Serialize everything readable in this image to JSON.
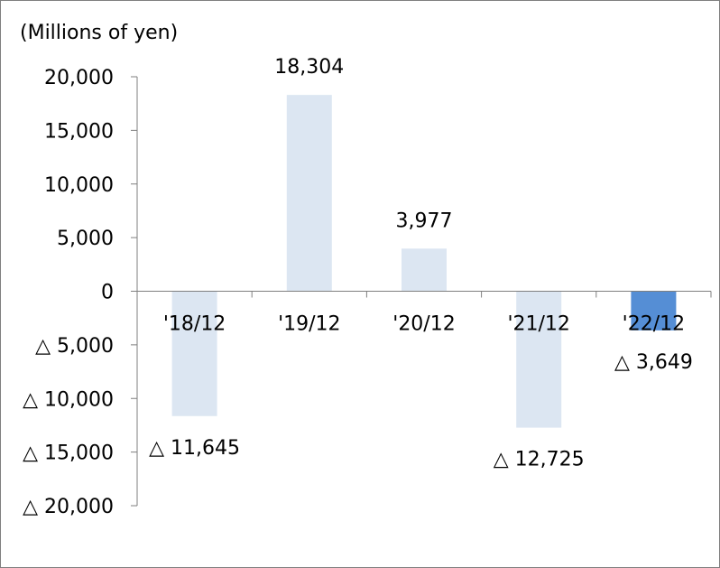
{
  "chart_data": {
    "type": "bar",
    "unit_label": "(Millions of yen)",
    "categories": [
      "'18/12",
      "'19/12",
      "'20/12",
      "'21/12",
      "'22/12"
    ],
    "values": [
      -11645,
      18304,
      3977,
      -12725,
      -3649
    ],
    "data_labels": [
      "△ 11,645",
      "18,304",
      "3,977",
      "△ 12,725",
      "△ 3,649"
    ],
    "ylim": [
      -20000,
      20000
    ],
    "yticks": [
      20000,
      15000,
      10000,
      5000,
      0,
      -5000,
      -10000,
      -15000,
      -20000
    ],
    "ytick_labels": [
      "20,000",
      "15,000",
      "10,000",
      "5,000",
      "0",
      "△ 5,000",
      "△ 10,000",
      "△ 15,000",
      "△ 20,000"
    ],
    "highlight_index": 4,
    "colors": {
      "bar": "#dce6f2",
      "highlight": "#558ed5",
      "axis": "#7f7f7f"
    }
  }
}
